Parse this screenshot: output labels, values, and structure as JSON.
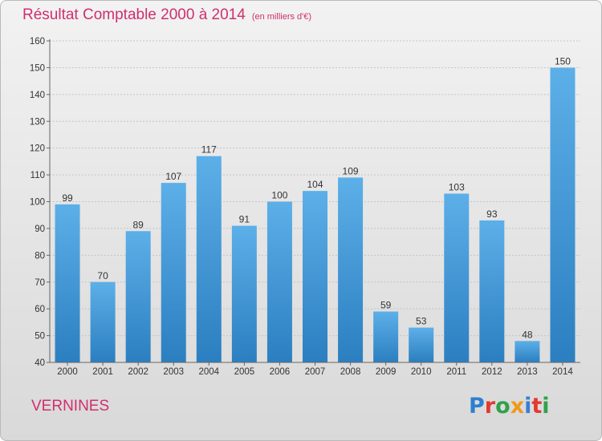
{
  "header": {
    "title": "Résultat Comptable 2000 à 2014",
    "subtitle": "(en milliers d'€)"
  },
  "commune": "VERNINES",
  "logo": {
    "text": "Proxiti",
    "letter_colors": [
      "#2f7fd0",
      "#e3392f",
      "#2fa24a",
      "#f09a1a",
      "#3b7fcf",
      "#e3392f",
      "#2fa24a"
    ]
  },
  "chart_data": {
    "type": "bar",
    "categories": [
      "2000",
      "2001",
      "2002",
      "2003",
      "2004",
      "2005",
      "2006",
      "2007",
      "2008",
      "2009",
      "2010",
      "2011",
      "2012",
      "2013",
      "2014"
    ],
    "values": [
      99,
      70,
      89,
      107,
      117,
      91,
      100,
      104,
      109,
      59,
      53,
      103,
      93,
      48,
      150
    ],
    "ylim": [
      40,
      160
    ],
    "yticks": [
      40,
      50,
      60,
      70,
      80,
      90,
      100,
      110,
      120,
      130,
      140,
      150,
      160
    ],
    "grid": true,
    "bar_color_top": "#5dafe8",
    "bar_color_bottom": "#2b7fc0"
  }
}
